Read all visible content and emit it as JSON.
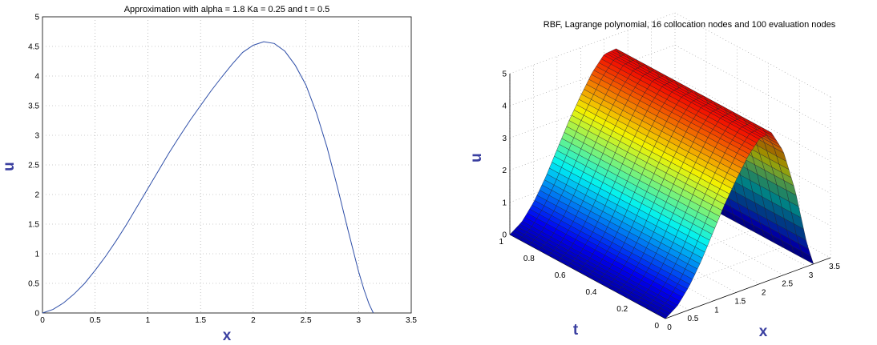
{
  "chart_data": [
    {
      "type": "line",
      "title": "Approximation with alpha = 1.8 Ka = 0.25 and t = 0.5",
      "xlabel": "x",
      "ylabel": "u",
      "xlim": [
        0,
        3.5
      ],
      "ylim": [
        0,
        5
      ],
      "xticks": [
        "0",
        "0.5",
        "1",
        "1.5",
        "2",
        "2.5",
        "3",
        "3.5"
      ],
      "yticks": [
        "0",
        "0.5",
        "1",
        "1.5",
        "2",
        "2.5",
        "3",
        "3.5",
        "4",
        "4.5",
        "5"
      ],
      "grid": true,
      "line_color": "#2f4fa8",
      "series": [
        {
          "x": [
            0,
            0.1,
            0.2,
            0.3,
            0.4,
            0.5,
            0.6,
            0.7,
            0.8,
            0.9,
            1.0,
            1.1,
            1.2,
            1.3,
            1.4,
            1.5,
            1.6,
            1.7,
            1.8,
            1.9,
            2.0,
            2.1,
            2.2,
            2.3,
            2.4,
            2.5,
            2.6,
            2.7,
            2.8,
            2.9,
            3.0,
            3.05,
            3.1,
            3.14
          ],
          "y": [
            0.0,
            0.06,
            0.17,
            0.32,
            0.5,
            0.72,
            0.96,
            1.22,
            1.5,
            1.8,
            2.1,
            2.4,
            2.7,
            2.98,
            3.25,
            3.5,
            3.75,
            3.98,
            4.2,
            4.4,
            4.52,
            4.58,
            4.55,
            4.42,
            4.18,
            3.85,
            3.38,
            2.8,
            2.12,
            1.4,
            0.7,
            0.4,
            0.15,
            0.0
          ]
        }
      ]
    },
    {
      "type": "surface",
      "title": "RBF, Lagrange polynomial, 16 collocation nodes and 100 evaluation nodes",
      "xlabel": "x",
      "ylabel": "t",
      "zlabel": "u",
      "xlim": [
        0,
        3.5
      ],
      "ylim": [
        0,
        1
      ],
      "zlim": [
        0,
        5
      ],
      "xticks": [
        "0",
        "0.5",
        "1",
        "1.5",
        "2",
        "2.5",
        "3",
        "3.5"
      ],
      "yticks": [
        "0",
        "0.2",
        "0.4",
        "0.6",
        "0.8",
        "1"
      ],
      "zticks": [
        "0",
        "1",
        "2",
        "3",
        "4",
        "5"
      ],
      "grid": true,
      "colormap": "jet",
      "surface_profile_x": [
        0,
        0.25,
        0.5,
        0.75,
        1.0,
        1.25,
        1.5,
        1.75,
        2.0,
        2.25,
        2.5,
        2.75,
        3.0,
        3.14
      ],
      "surface_profile_u": [
        0.0,
        0.25,
        0.72,
        1.35,
        2.1,
        2.85,
        3.5,
        4.1,
        4.52,
        4.56,
        3.85,
        2.5,
        0.7,
        0.0
      ]
    }
  ]
}
